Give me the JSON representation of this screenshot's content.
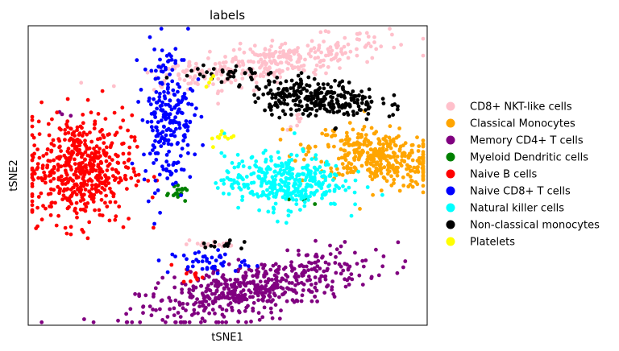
{
  "chart_data": {
    "type": "scatter",
    "title": "labels",
    "xlabel": "tSNE1",
    "ylabel": "tSNE2",
    "grid": false,
    "ticks": false,
    "legend_position": "right-outside",
    "series": [
      {
        "name": "CD8+ NKT-like cells",
        "color": "#ffc0cb",
        "clusters": [
          {
            "center": [
              62,
              88
            ],
            "spread": [
              14,
              3.2
            ],
            "n": 300,
            "slope": 0.22
          },
          {
            "center": [
              39,
              85
            ],
            "spread": [
              5,
              1.2
            ],
            "n": 25,
            "slope": 0
          },
          {
            "center": [
              68,
              68
            ],
            "spread": [
              1.5,
              1.5
            ],
            "n": 8,
            "slope": 0
          },
          {
            "center": [
              46,
              27
            ],
            "spread": [
              4,
              1
            ],
            "n": 20,
            "slope": -0.1
          }
        ]
      },
      {
        "name": "Classical Monocytes",
        "color": "#ffa500",
        "clusters": [
          {
            "center": [
              88,
              56
            ],
            "spread": [
              8.5,
              4.5
            ],
            "n": 380,
            "slope": -0.2
          }
        ]
      },
      {
        "name": "Memory CD4+ T cells",
        "color": "#800080",
        "clusters": [
          {
            "center": [
              56,
              12
            ],
            "spread": [
              14,
              4.5
            ],
            "n": 520,
            "slope": 0.28
          },
          {
            "center": [
              9,
              71
            ],
            "spread": [
              1,
              1
            ],
            "n": 3,
            "slope": 0
          }
        ]
      },
      {
        "name": "Myeloid Dendritic cells",
        "color": "#008000",
        "clusters": [
          {
            "center": [
              38,
              44
            ],
            "spread": [
              1.2,
              1
            ],
            "n": 20,
            "slope": 0
          },
          {
            "center": [
              71,
              41
            ],
            "spread": [
              3,
              2
            ],
            "n": 4,
            "slope": 0
          }
        ]
      },
      {
        "name": "Naive B cells",
        "color": "#ff0000",
        "clusters": [
          {
            "center": [
              13,
              52
            ],
            "spread": [
              6.5,
              9
            ],
            "n": 520,
            "slope": 0
          },
          {
            "center": [
              41,
              17
            ],
            "spread": [
              1.5,
              1.5
            ],
            "n": 12,
            "slope": 0
          }
        ]
      },
      {
        "name": "Naive CD8+ T cells",
        "color": "#0000ff",
        "clusters": [
          {
            "center": [
              35,
              70
            ],
            "spread": [
              3.2,
              12
            ],
            "n": 230,
            "slope": 0
          },
          {
            "center": [
              45,
              21
            ],
            "spread": [
              5,
              2
            ],
            "n": 45,
            "slope": 0
          }
        ]
      },
      {
        "name": "Natural killer cells",
        "color": "#00ffff",
        "clusters": [
          {
            "center": [
              64,
              48
            ],
            "spread": [
              7.5,
              4.5
            ],
            "n": 360,
            "slope": 0
          }
        ]
      },
      {
        "name": "Non-classical monocytes",
        "color": "#000000",
        "clusters": [
          {
            "center": [
              72,
              76
            ],
            "spread": [
              8,
              3.2
            ],
            "n": 280,
            "slope": -0.1
          },
          {
            "center": [
              49,
              84
            ],
            "spread": [
              5,
              1.5
            ],
            "n": 30,
            "slope": 0
          },
          {
            "center": [
              49,
              27
            ],
            "spread": [
              3,
              1
            ],
            "n": 12,
            "slope": 0
          }
        ]
      },
      {
        "name": "Platelets",
        "color": "#ffff00",
        "clusters": [
          {
            "center": [
              49,
              63
            ],
            "spread": [
              2,
              1.5
            ],
            "n": 10,
            "slope": 0
          },
          {
            "center": [
              46,
              82
            ],
            "spread": [
              1,
              1
            ],
            "n": 4,
            "slope": 0
          }
        ]
      }
    ],
    "xlim": [
      0,
      100
    ],
    "ylim": [
      0,
      100
    ]
  }
}
